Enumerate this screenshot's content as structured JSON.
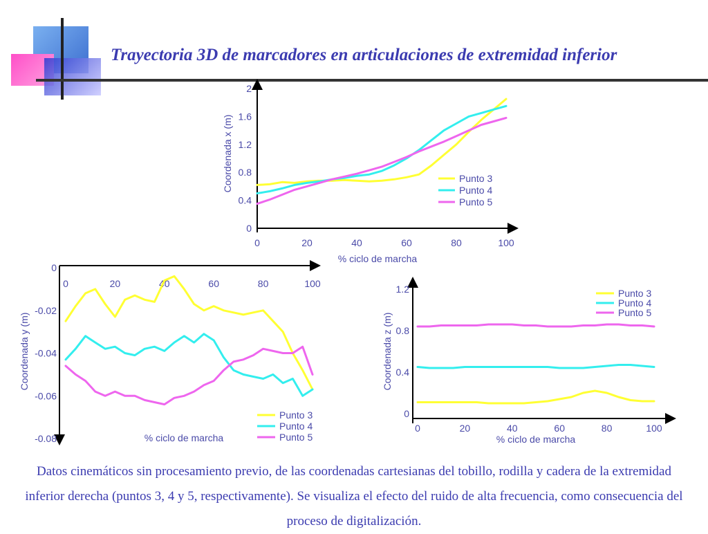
{
  "slide": {
    "title": "Trayectoria 3D de marcadores en articulaciones de extremidad inferior",
    "caption": "Datos cinemáticos sin procesamiento previo, de las coordenadas cartesianas del tobillo, rodilla y cadera de la extremidad inferior derecha (puntos 3, 4 y 5, respectivamente). Se visualiza el efecto del ruido de alta frecuencia, como consecuencia del proceso de digitalización."
  },
  "colors": {
    "series": [
      "#ffff33",
      "#33eeee",
      "#ee66ee"
    ],
    "axis": "#000000",
    "text": "#4a4aa8",
    "title": "#3b3bb0"
  },
  "chart_data": [
    {
      "id": "x",
      "type": "line",
      "title": "",
      "xlabel": "% ciclo de marcha",
      "ylabel": "Coordenada x (m)",
      "xlim": [
        0,
        100
      ],
      "ylim": [
        0,
        2
      ],
      "xticks": [
        "0",
        "20",
        "40",
        "60",
        "80",
        "100"
      ],
      "yticks": [
        "0",
        "0.4",
        "0.8",
        "1.2",
        "1.6",
        "2"
      ],
      "grid": false,
      "legend": "right",
      "series": [
        {
          "name": "Punto 3",
          "x": [
            0,
            5,
            10,
            15,
            20,
            25,
            30,
            35,
            40,
            45,
            50,
            55,
            60,
            65,
            70,
            75,
            80,
            85,
            90,
            95,
            100
          ],
          "y": [
            0.62,
            0.63,
            0.66,
            0.65,
            0.67,
            0.68,
            0.68,
            0.69,
            0.68,
            0.67,
            0.68,
            0.7,
            0.73,
            0.77,
            0.9,
            1.05,
            1.2,
            1.38,
            1.55,
            1.7,
            1.85
          ]
        },
        {
          "name": "Punto 4",
          "x": [
            0,
            5,
            10,
            15,
            20,
            25,
            30,
            35,
            40,
            45,
            50,
            55,
            60,
            65,
            70,
            75,
            80,
            85,
            90,
            95,
            100
          ],
          "y": [
            0.5,
            0.53,
            0.57,
            0.62,
            0.65,
            0.67,
            0.7,
            0.72,
            0.75,
            0.77,
            0.82,
            0.9,
            1.0,
            1.12,
            1.26,
            1.4,
            1.5,
            1.6,
            1.65,
            1.7,
            1.75
          ]
        },
        {
          "name": "Punto 5",
          "x": [
            0,
            5,
            10,
            15,
            20,
            25,
            30,
            35,
            40,
            45,
            50,
            55,
            60,
            65,
            70,
            75,
            80,
            85,
            90,
            95,
            100
          ],
          "y": [
            0.35,
            0.41,
            0.48,
            0.55,
            0.6,
            0.65,
            0.7,
            0.74,
            0.78,
            0.83,
            0.88,
            0.95,
            1.02,
            1.1,
            1.17,
            1.24,
            1.32,
            1.4,
            1.48,
            1.53,
            1.58
          ]
        }
      ]
    },
    {
      "id": "y",
      "type": "line",
      "title": "",
      "xlabel": "% ciclo de marcha",
      "ylabel": "Coordenada y (m)",
      "xlim": [
        0,
        100
      ],
      "ylim": [
        -0.08,
        0
      ],
      "xticks": [
        "0",
        "20",
        "40",
        "60",
        "80",
        "100"
      ],
      "yticks": [
        "0",
        "-0.02",
        "-0.04",
        "-0.06",
        "-0.08"
      ],
      "grid": false,
      "legend": "bottom-right",
      "series": [
        {
          "name": "Punto 3",
          "x": [
            0,
            4,
            8,
            12,
            16,
            20,
            24,
            28,
            32,
            36,
            40,
            44,
            48,
            52,
            56,
            60,
            64,
            68,
            72,
            76,
            80,
            84,
            88,
            92,
            96,
            100
          ],
          "y": [
            -0.025,
            -0.018,
            -0.012,
            -0.01,
            -0.017,
            -0.023,
            -0.015,
            -0.013,
            -0.015,
            -0.016,
            -0.006,
            -0.004,
            -0.01,
            -0.017,
            -0.02,
            -0.018,
            -0.02,
            -0.021,
            -0.022,
            -0.021,
            -0.02,
            -0.025,
            -0.03,
            -0.04,
            -0.048,
            -0.057
          ]
        },
        {
          "name": "Punto 4",
          "x": [
            0,
            4,
            8,
            12,
            16,
            20,
            24,
            28,
            32,
            36,
            40,
            44,
            48,
            52,
            56,
            60,
            64,
            68,
            72,
            76,
            80,
            84,
            88,
            92,
            96,
            100
          ],
          "y": [
            -0.043,
            -0.038,
            -0.032,
            -0.035,
            -0.038,
            -0.037,
            -0.04,
            -0.041,
            -0.038,
            -0.037,
            -0.039,
            -0.035,
            -0.032,
            -0.035,
            -0.031,
            -0.034,
            -0.042,
            -0.048,
            -0.05,
            -0.051,
            -0.052,
            -0.05,
            -0.054,
            -0.052,
            -0.06,
            -0.057
          ]
        },
        {
          "name": "Punto 5",
          "x": [
            0,
            4,
            8,
            12,
            16,
            20,
            24,
            28,
            32,
            36,
            40,
            44,
            48,
            52,
            56,
            60,
            64,
            68,
            72,
            76,
            80,
            84,
            88,
            92,
            96,
            100
          ],
          "y": [
            -0.046,
            -0.05,
            -0.053,
            -0.058,
            -0.06,
            -0.058,
            -0.06,
            -0.06,
            -0.062,
            -0.063,
            -0.064,
            -0.061,
            -0.06,
            -0.058,
            -0.055,
            -0.053,
            -0.048,
            -0.044,
            -0.043,
            -0.041,
            -0.038,
            -0.039,
            -0.04,
            -0.04,
            -0.037,
            -0.05
          ]
        }
      ]
    },
    {
      "id": "z",
      "type": "line",
      "title": "",
      "xlabel": "% ciclo de marcha",
      "ylabel": "Coordenada z (m)",
      "xlim": [
        0,
        100
      ],
      "ylim": [
        0,
        1.2
      ],
      "xticks": [
        "0",
        "20",
        "40",
        "60",
        "80",
        "100"
      ],
      "yticks": [
        "0",
        "0.4",
        "0.8",
        "1.2"
      ],
      "grid": false,
      "legend": "top-right",
      "series": [
        {
          "name": "Punto 3",
          "x": [
            0,
            5,
            10,
            15,
            20,
            25,
            30,
            35,
            40,
            45,
            50,
            55,
            60,
            65,
            70,
            75,
            80,
            85,
            90,
            95,
            100
          ],
          "y": [
            0.11,
            0.11,
            0.11,
            0.11,
            0.11,
            0.11,
            0.1,
            0.1,
            0.1,
            0.1,
            0.11,
            0.12,
            0.14,
            0.16,
            0.2,
            0.22,
            0.2,
            0.16,
            0.13,
            0.12,
            0.12
          ]
        },
        {
          "name": "Punto 4",
          "x": [
            0,
            5,
            10,
            15,
            20,
            25,
            30,
            35,
            40,
            45,
            50,
            55,
            60,
            65,
            70,
            75,
            80,
            85,
            90,
            95,
            100
          ],
          "y": [
            0.45,
            0.44,
            0.44,
            0.44,
            0.45,
            0.45,
            0.45,
            0.45,
            0.45,
            0.45,
            0.45,
            0.45,
            0.44,
            0.44,
            0.44,
            0.45,
            0.46,
            0.47,
            0.47,
            0.46,
            0.45
          ]
        },
        {
          "name": "Punto 5",
          "x": [
            0,
            5,
            10,
            15,
            20,
            25,
            30,
            35,
            40,
            45,
            50,
            55,
            60,
            65,
            70,
            75,
            80,
            85,
            90,
            95,
            100
          ],
          "y": [
            0.84,
            0.84,
            0.85,
            0.85,
            0.85,
            0.85,
            0.86,
            0.86,
            0.86,
            0.85,
            0.85,
            0.84,
            0.84,
            0.84,
            0.85,
            0.85,
            0.86,
            0.86,
            0.85,
            0.85,
            0.84
          ]
        }
      ]
    }
  ]
}
